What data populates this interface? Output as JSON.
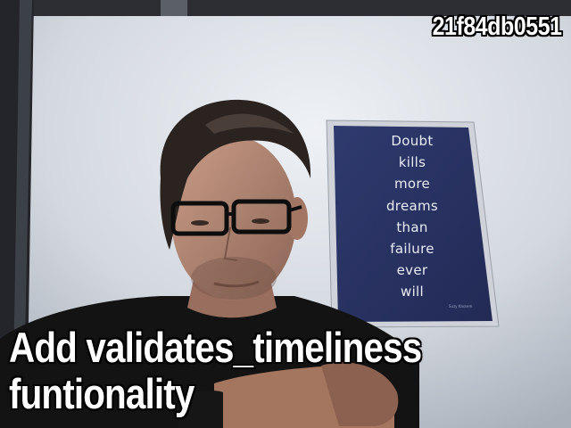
{
  "overlay": {
    "commit_hash": "21f84db0551",
    "commit_message": "Add validates_timeliness funtionality"
  },
  "poster": {
    "lines": [
      "Doubt",
      "kills",
      "more",
      "dreams",
      "than",
      "failure",
      "ever",
      "will"
    ],
    "credit": "Suzy Kassem"
  },
  "colors": {
    "wall": "#d9dde3",
    "poster_background": "#2b3566",
    "poster_frame": "#c9ccd2",
    "shirt": "#141414",
    "hair": "#2a2320"
  }
}
